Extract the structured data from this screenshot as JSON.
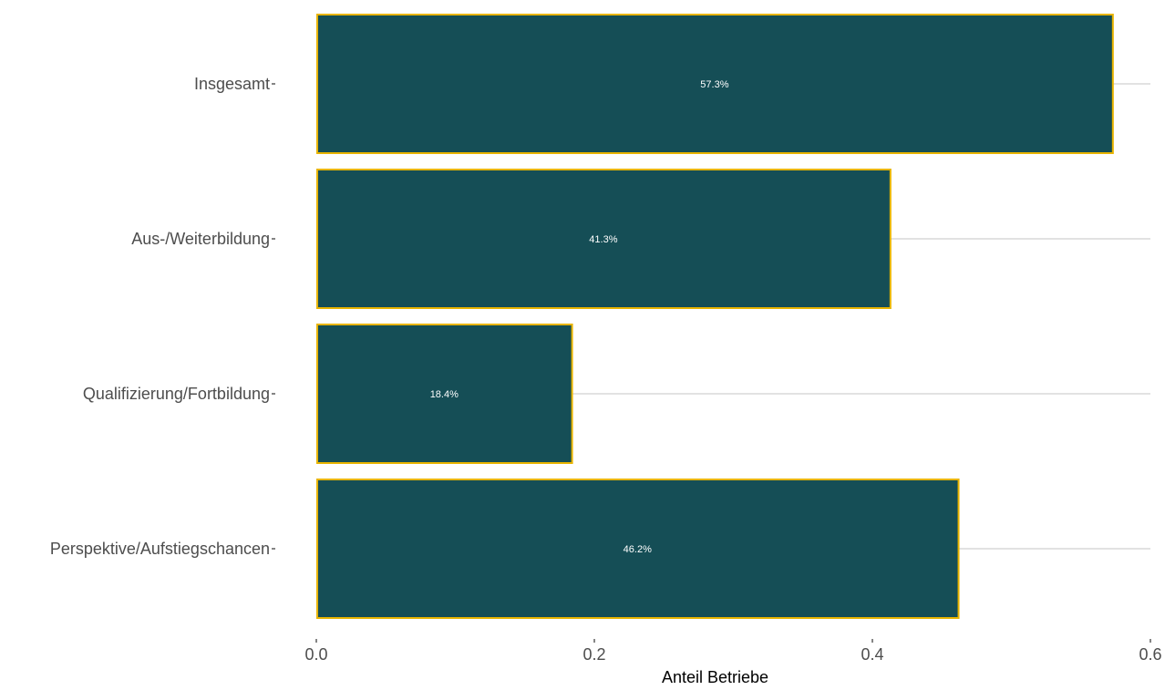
{
  "chart_data": {
    "type": "bar",
    "orientation": "horizontal",
    "categories": [
      "Insgesamt",
      "Aus-/Weiterbildung",
      "Qualifizierung/Fortbildung",
      "Perspektive/Aufstiegschancen"
    ],
    "values": [
      0.573,
      0.413,
      0.184,
      0.462
    ],
    "data_labels": [
      "57.3%",
      "41.3%",
      "18.4%",
      "46.2%"
    ],
    "xlabel": "Anteil Betriebe",
    "ylabel": "",
    "xlim": [
      0,
      0.6
    ],
    "x_ticks": [
      0.0,
      0.2,
      0.4,
      0.6
    ],
    "x_tick_labels": [
      "0.0",
      "0.2",
      "0.4",
      "0.6"
    ],
    "grid": true,
    "bar_fill": "#154e56",
    "bar_outline": "#e8b400"
  }
}
